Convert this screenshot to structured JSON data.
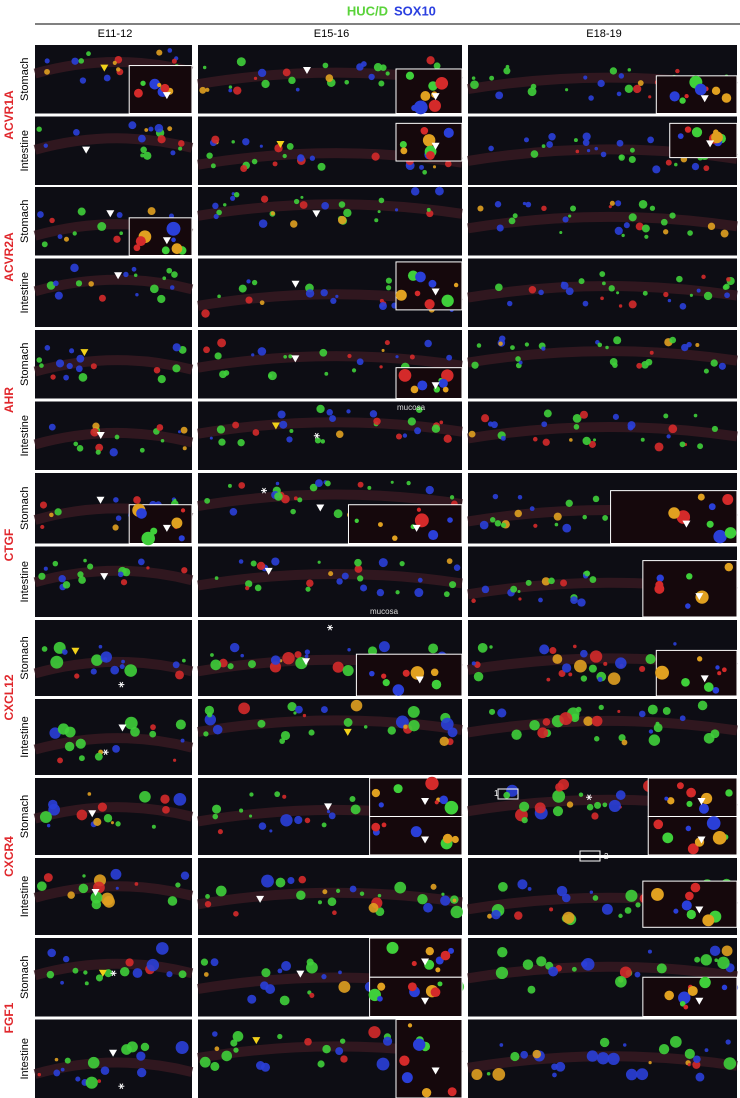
{
  "header": {
    "stain_1": "HUC/D",
    "stain_2": "SOX10"
  },
  "columns": [
    "E11-12",
    "E15-16",
    "E18-19"
  ],
  "genes": [
    {
      "name": "ACVR1A",
      "rows": [
        "Stomach",
        "Intestine"
      ]
    },
    {
      "name": "ACVR2A",
      "rows": [
        "Stomach",
        "Intestine"
      ]
    },
    {
      "name": "AHR",
      "rows": [
        "Stomach",
        "Intestine"
      ]
    },
    {
      "name": "CTGF",
      "rows": [
        "Stomach",
        "Intestine"
      ]
    },
    {
      "name": "CXCL12",
      "rows": [
        "Stomach",
        "Intestine"
      ]
    },
    {
      "name": "CXCR4",
      "rows": [
        "Stomach",
        "Intestine"
      ]
    },
    {
      "name": "FGF1",
      "rows": [
        "Stomach",
        "Intestine"
      ]
    }
  ],
  "annotations": [
    "mucosa",
    "mucosa",
    "1",
    "2"
  ]
}
